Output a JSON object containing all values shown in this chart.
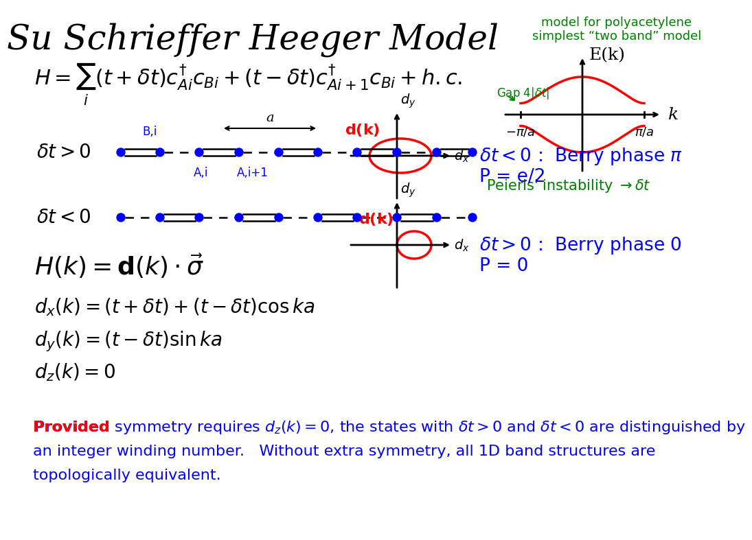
{
  "title": "Su Schrieffer Heeger Model",
  "subtitle": "model for polyacetylene\nsimplest “two band” model",
  "title_color": "#000000",
  "subtitle_color": "#008000",
  "bg_color": "#ffffff",
  "blue_color": "#0000ff",
  "red_color": "#ff0000",
  "green_color": "#008000",
  "dot_color": "#0000ff",
  "bond_color": "#000000",
  "bottom_text_line1": "Provided symmetry requires d₂(k)=0, the states with δt>0 and δt<0 are distinguished by",
  "bottom_text_line2": "an integer winding number.   Without extra symmetry, all 1D band structures are",
  "bottom_text_line3": "topologically equivalent."
}
